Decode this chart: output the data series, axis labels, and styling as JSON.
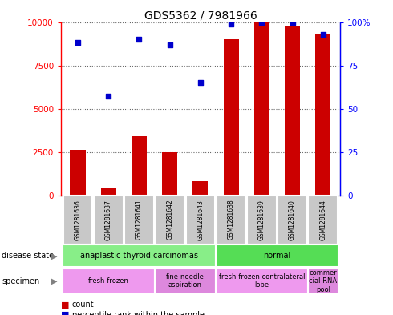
{
  "title": "GDS5362 / 7981966",
  "samples": [
    "GSM1281636",
    "GSM1281637",
    "GSM1281641",
    "GSM1281642",
    "GSM1281643",
    "GSM1281638",
    "GSM1281639",
    "GSM1281640",
    "GSM1281644"
  ],
  "counts": [
    2600,
    400,
    3400,
    2500,
    800,
    9000,
    10000,
    9800,
    9300
  ],
  "percentile_ranks": [
    88,
    57,
    90,
    87,
    65,
    99,
    100,
    100,
    93
  ],
  "ylim_left": [
    0,
    10000
  ],
  "ylim_right": [
    0,
    100
  ],
  "yticks_left": [
    0,
    2500,
    5000,
    7500,
    10000
  ],
  "ytick_labels_left": [
    "0",
    "2500",
    "5000",
    "7500",
    "10000"
  ],
  "yticks_right": [
    0,
    25,
    50,
    75,
    100
  ],
  "ytick_labels_right": [
    "0",
    "25",
    "50",
    "75",
    "100%"
  ],
  "bar_color": "#cc0000",
  "dot_color": "#0000cc",
  "bar_width": 0.5,
  "disease_state_groups": [
    {
      "label": "anaplastic thyroid carcinomas",
      "start": 0,
      "end": 5,
      "color": "#88ee88"
    },
    {
      "label": "normal",
      "start": 5,
      "end": 9,
      "color": "#55dd55"
    }
  ],
  "specimen_groups": [
    {
      "label": "fresh-frozen",
      "start": 0,
      "end": 3,
      "color": "#ee99ee"
    },
    {
      "label": "fine-needle\naspiration",
      "start": 3,
      "end": 5,
      "color": "#dd88dd"
    },
    {
      "label": "fresh-frozen contralateral\nlobe",
      "start": 5,
      "end": 8,
      "color": "#ee99ee"
    },
    {
      "label": "commer\ncial RNA\npool",
      "start": 8,
      "end": 9,
      "color": "#dd88dd"
    }
  ],
  "row_label_disease": "disease state",
  "row_label_specimen": "specimen",
  "legend_count_label": "count",
  "legend_percentile_label": "percentile rank within the sample",
  "background_color": "#ffffff",
  "sample_label_bg": "#c8c8c8"
}
